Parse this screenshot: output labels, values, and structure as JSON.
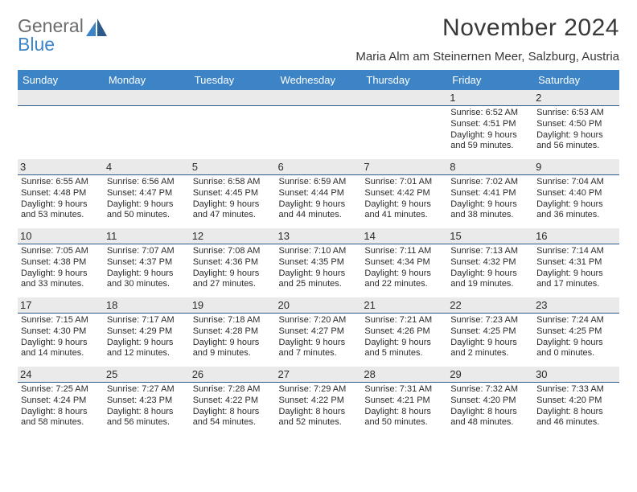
{
  "brand": {
    "line1": "General",
    "line2": "Blue"
  },
  "title": "November 2024",
  "location": "Maria Alm am Steinernen Meer, Salzburg, Austria",
  "colors": {
    "header_bg": "#3d84c6",
    "header_text": "#ffffff",
    "daynum_bg": "#eaeaea",
    "daynum_border": "#2c5a8a",
    "body_text": "#2b2b2b",
    "title_text": "#383838",
    "logo_gray": "#6c6c6c",
    "logo_blue": "#3d84c6",
    "page_bg": "#ffffff"
  },
  "day_headers": [
    "Sunday",
    "Monday",
    "Tuesday",
    "Wednesday",
    "Thursday",
    "Friday",
    "Saturday"
  ],
  "weeks": [
    [
      null,
      null,
      null,
      null,
      null,
      {
        "n": "1",
        "sr": "6:52 AM",
        "ss": "4:51 PM",
        "dh": "9",
        "dm": "59"
      },
      {
        "n": "2",
        "sr": "6:53 AM",
        "ss": "4:50 PM",
        "dh": "9",
        "dm": "56"
      }
    ],
    [
      {
        "n": "3",
        "sr": "6:55 AM",
        "ss": "4:48 PM",
        "dh": "9",
        "dm": "53"
      },
      {
        "n": "4",
        "sr": "6:56 AM",
        "ss": "4:47 PM",
        "dh": "9",
        "dm": "50"
      },
      {
        "n": "5",
        "sr": "6:58 AM",
        "ss": "4:45 PM",
        "dh": "9",
        "dm": "47"
      },
      {
        "n": "6",
        "sr": "6:59 AM",
        "ss": "4:44 PM",
        "dh": "9",
        "dm": "44"
      },
      {
        "n": "7",
        "sr": "7:01 AM",
        "ss": "4:42 PM",
        "dh": "9",
        "dm": "41"
      },
      {
        "n": "8",
        "sr": "7:02 AM",
        "ss": "4:41 PM",
        "dh": "9",
        "dm": "38"
      },
      {
        "n": "9",
        "sr": "7:04 AM",
        "ss": "4:40 PM",
        "dh": "9",
        "dm": "36"
      }
    ],
    [
      {
        "n": "10",
        "sr": "7:05 AM",
        "ss": "4:38 PM",
        "dh": "9",
        "dm": "33"
      },
      {
        "n": "11",
        "sr": "7:07 AM",
        "ss": "4:37 PM",
        "dh": "9",
        "dm": "30"
      },
      {
        "n": "12",
        "sr": "7:08 AM",
        "ss": "4:36 PM",
        "dh": "9",
        "dm": "27"
      },
      {
        "n": "13",
        "sr": "7:10 AM",
        "ss": "4:35 PM",
        "dh": "9",
        "dm": "25"
      },
      {
        "n": "14",
        "sr": "7:11 AM",
        "ss": "4:34 PM",
        "dh": "9",
        "dm": "22"
      },
      {
        "n": "15",
        "sr": "7:13 AM",
        "ss": "4:32 PM",
        "dh": "9",
        "dm": "19"
      },
      {
        "n": "16",
        "sr": "7:14 AM",
        "ss": "4:31 PM",
        "dh": "9",
        "dm": "17"
      }
    ],
    [
      {
        "n": "17",
        "sr": "7:15 AM",
        "ss": "4:30 PM",
        "dh": "9",
        "dm": "14"
      },
      {
        "n": "18",
        "sr": "7:17 AM",
        "ss": "4:29 PM",
        "dh": "9",
        "dm": "12"
      },
      {
        "n": "19",
        "sr": "7:18 AM",
        "ss": "4:28 PM",
        "dh": "9",
        "dm": "9"
      },
      {
        "n": "20",
        "sr": "7:20 AM",
        "ss": "4:27 PM",
        "dh": "9",
        "dm": "7"
      },
      {
        "n": "21",
        "sr": "7:21 AM",
        "ss": "4:26 PM",
        "dh": "9",
        "dm": "5"
      },
      {
        "n": "22",
        "sr": "7:23 AM",
        "ss": "4:25 PM",
        "dh": "9",
        "dm": "2"
      },
      {
        "n": "23",
        "sr": "7:24 AM",
        "ss": "4:25 PM",
        "dh": "9",
        "dm": "0"
      }
    ],
    [
      {
        "n": "24",
        "sr": "7:25 AM",
        "ss": "4:24 PM",
        "dh": "8",
        "dm": "58"
      },
      {
        "n": "25",
        "sr": "7:27 AM",
        "ss": "4:23 PM",
        "dh": "8",
        "dm": "56"
      },
      {
        "n": "26",
        "sr": "7:28 AM",
        "ss": "4:22 PM",
        "dh": "8",
        "dm": "54"
      },
      {
        "n": "27",
        "sr": "7:29 AM",
        "ss": "4:22 PM",
        "dh": "8",
        "dm": "52"
      },
      {
        "n": "28",
        "sr": "7:31 AM",
        "ss": "4:21 PM",
        "dh": "8",
        "dm": "50"
      },
      {
        "n": "29",
        "sr": "7:32 AM",
        "ss": "4:20 PM",
        "dh": "8",
        "dm": "48"
      },
      {
        "n": "30",
        "sr": "7:33 AM",
        "ss": "4:20 PM",
        "dh": "8",
        "dm": "46"
      }
    ]
  ],
  "labels": {
    "sunrise": "Sunrise:",
    "sunset": "Sunset:",
    "daylight": "Daylight:",
    "hours": "hours",
    "and": "and",
    "minutes": "minutes."
  }
}
